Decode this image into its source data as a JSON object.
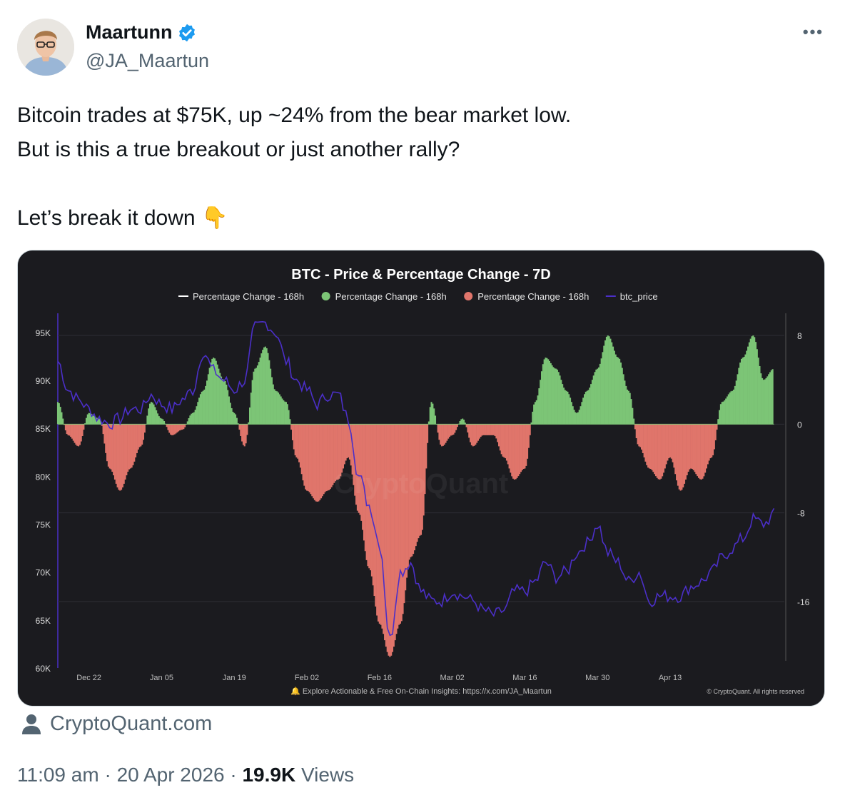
{
  "author": {
    "name": "Maartunn",
    "handle": "@JA_Maartun",
    "verified_icon": "verified-badge-icon",
    "verified_color": "#1d9bf0"
  },
  "more_label": "•••",
  "tweet": {
    "lines": [
      "Bitcoin trades at $75K, up ~24% from the bear market low.",
      "But is this a true breakout or just another rally?",
      "",
      "Let’s break it down"
    ],
    "emoji": "👇"
  },
  "source_card": {
    "label": "CryptoQuant.com",
    "icon": "person-icon"
  },
  "meta": {
    "time": "11:09 am",
    "date": "20 Apr 2026",
    "views_count": "19.9K",
    "views_label": "Views",
    "separator": "·"
  },
  "chart_data": {
    "type": "line",
    "title": "BTC - Price & Percentage Change - 7D",
    "legend": [
      {
        "name": "Percentage Change - 168h",
        "marker": "line",
        "color": "#ffffff"
      },
      {
        "name": "Percentage Change - 168h",
        "marker": "dot",
        "color": "#7cc576"
      },
      {
        "name": "Percentage Change - 168h",
        "marker": "dot",
        "color": "#e0756b"
      },
      {
        "name": "btc_price",
        "marker": "line",
        "color": "#4b2fc8"
      }
    ],
    "legend_placement": "top",
    "x_ticks": [
      "Dec 22",
      "Jan 05",
      "Jan 19",
      "Feb 02",
      "Feb 16",
      "Mar 02",
      "Mar 16",
      "Mar 30",
      "Apr 13"
    ],
    "left_axis": {
      "ticks": [
        "95K",
        "90K",
        "85K",
        "80K",
        "75K",
        "70K",
        "65K",
        "60K"
      ],
      "values": [
        95000,
        90000,
        85000,
        80000,
        75000,
        70000,
        65000,
        60000
      ]
    },
    "right_axis": {
      "ticks": [
        "8",
        "0",
        "-8",
        "-16"
      ],
      "values": [
        8,
        0,
        -8,
        -16
      ]
    },
    "pct_ylim": [
      -22,
      10
    ],
    "price_ylim": [
      60000,
      97000
    ],
    "colors": {
      "positive": "#7cc576",
      "negative": "#e0756b",
      "price": "#4b2fc8",
      "background": "#1b1b1f"
    },
    "series": [
      {
        "name": "Percentage Change - 168h",
        "x_days": [
          0,
          2,
          4,
          6,
          8,
          10,
          12,
          14,
          16,
          18,
          20,
          22,
          24,
          26,
          28,
          30,
          32,
          34,
          36,
          38,
          40,
          42,
          44,
          46,
          48,
          50,
          52,
          54,
          56,
          58,
          60,
          62,
          64,
          66,
          68,
          70,
          72,
          74,
          76,
          78,
          80,
          82,
          84,
          86,
          88,
          90,
          92,
          94,
          96,
          98,
          100,
          102,
          104,
          106,
          108,
          110,
          112,
          114,
          116,
          118,
          120,
          122,
          124,
          126,
          128,
          130,
          132,
          134,
          136,
          138
        ],
        "values": [
          2,
          -1,
          -2,
          1,
          0.5,
          -4,
          -6,
          -4,
          -2,
          2,
          0.5,
          -1,
          -0.5,
          1,
          3,
          6,
          4,
          1,
          -2,
          5,
          7,
          3,
          2,
          -3,
          -6,
          -7,
          -6,
          -5,
          -3,
          -8,
          -13,
          -18,
          -21,
          -18,
          -12,
          -10,
          2,
          -2,
          -1,
          0.5,
          -2,
          -1,
          -1,
          -3,
          -5,
          -4,
          2,
          6,
          5,
          3,
          1,
          3,
          5,
          8,
          6,
          3,
          -2,
          -4,
          -5,
          -3,
          -6,
          -4,
          -5,
          -3,
          2,
          3,
          6,
          8,
          4,
          5
        ]
      },
      {
        "name": "btc_price",
        "x_days": [
          0,
          2,
          4,
          6,
          8,
          10,
          12,
          14,
          16,
          18,
          20,
          22,
          24,
          26,
          28,
          30,
          32,
          34,
          36,
          38,
          40,
          42,
          44,
          46,
          48,
          50,
          52,
          54,
          56,
          58,
          60,
          62,
          64,
          66,
          68,
          70,
          72,
          74,
          76,
          78,
          80,
          82,
          84,
          86,
          88,
          90,
          92,
          94,
          96,
          98,
          100,
          102,
          104,
          106,
          108,
          110,
          112,
          114,
          116,
          118,
          120,
          122,
          124,
          126,
          128,
          130,
          132,
          134,
          136,
          138
        ],
        "values": [
          92000,
          89000,
          88000,
          87000,
          86000,
          85500,
          86000,
          87000,
          87000,
          88500,
          87500,
          87000,
          88000,
          89000,
          93000,
          91000,
          90000,
          89000,
          90000,
          95500,
          96000,
          95000,
          92000,
          90000,
          89000,
          87500,
          88500,
          88500,
          86000,
          80000,
          77000,
          73000,
          63000,
          70000,
          71000,
          68000,
          67000,
          67000,
          68000,
          67500,
          67000,
          66000,
          65500,
          66000,
          68000,
          68000,
          69000,
          71000,
          69500,
          70000,
          72000,
          73000,
          75000,
          72000,
          71000,
          69000,
          70000,
          67000,
          67500,
          67500,
          67500,
          68500,
          69000,
          70000,
          71500,
          72500,
          73500,
          75500,
          75000,
          76000
        ]
      }
    ]
  }
}
